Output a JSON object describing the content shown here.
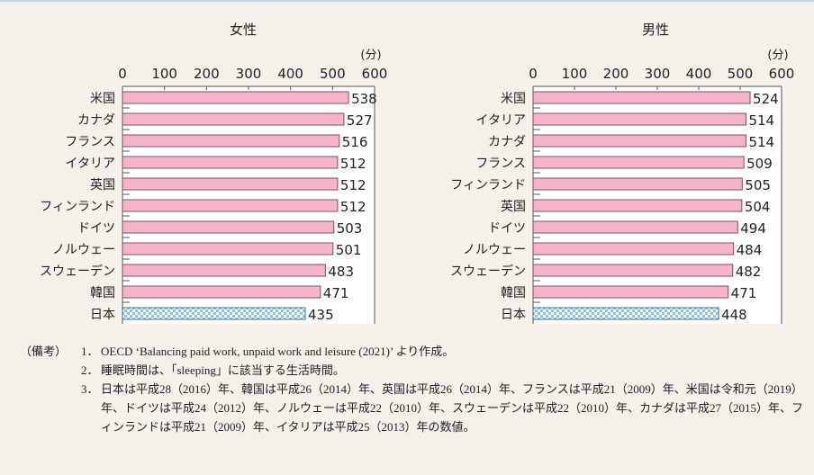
{
  "chart_data": [
    {
      "type": "bar",
      "orientation": "horizontal",
      "title": "女性",
      "unit": "(分)",
      "xlim": [
        0,
        600
      ],
      "ticks": [
        "0",
        "100",
        "200",
        "300",
        "400",
        "500",
        "600"
      ],
      "categories": [
        "米国",
        "カナダ",
        "フランス",
        "イタリア",
        "英国",
        "フィンランド",
        "ドイツ",
        "ノルウェー",
        "スウェーデン",
        "韓国",
        "日本"
      ],
      "values": [
        538,
        527,
        516,
        512,
        512,
        512,
        503,
        501,
        483,
        471,
        435
      ],
      "highlight": "日本"
    },
    {
      "type": "bar",
      "orientation": "horizontal",
      "title": "男性",
      "unit": "(分)",
      "xlim": [
        0,
        600
      ],
      "ticks": [
        "0",
        "100",
        "200",
        "300",
        "400",
        "500",
        "600"
      ],
      "categories": [
        "米国",
        "イタリア",
        "カナダ",
        "フランス",
        "フィンランド",
        "英国",
        "ドイツ",
        "ノルウェー",
        "スウェーデン",
        "韓国",
        "日本"
      ],
      "values": [
        524,
        514,
        514,
        509,
        505,
        504,
        494,
        484,
        482,
        471,
        448
      ],
      "highlight": "日本"
    }
  ],
  "colors": {
    "bar": "#f4b6c6",
    "bar_stroke": "#8a4a5a",
    "highlight": "#a9d4ef",
    "highlight_stroke": "#3a6fa0"
  },
  "notes": {
    "label": "（備考）",
    "items": [
      {
        "num": "1．",
        "text": "OECD ‘Balancing paid work, unpaid work and leisure (2021)’ より作成。"
      },
      {
        "num": "2．",
        "text": "睡眠時間は、「sleeping」に該当する生活時間。"
      },
      {
        "num": "3．",
        "text": "日本は平成28（2016）年、韓国は平成26（2014）年、英国は平成26（2014）年、フランスは平成21（2009）年、米国は令和元（2019）年、ドイツは平成24（2012）年、ノルウェーは平成22（2010）年、スウェーデンは平成22（2010）年、カナダは平成27（2015）年、フィンランドは平成21（2009）年、イタリアは平成25（2013）年の数値。"
      }
    ]
  }
}
